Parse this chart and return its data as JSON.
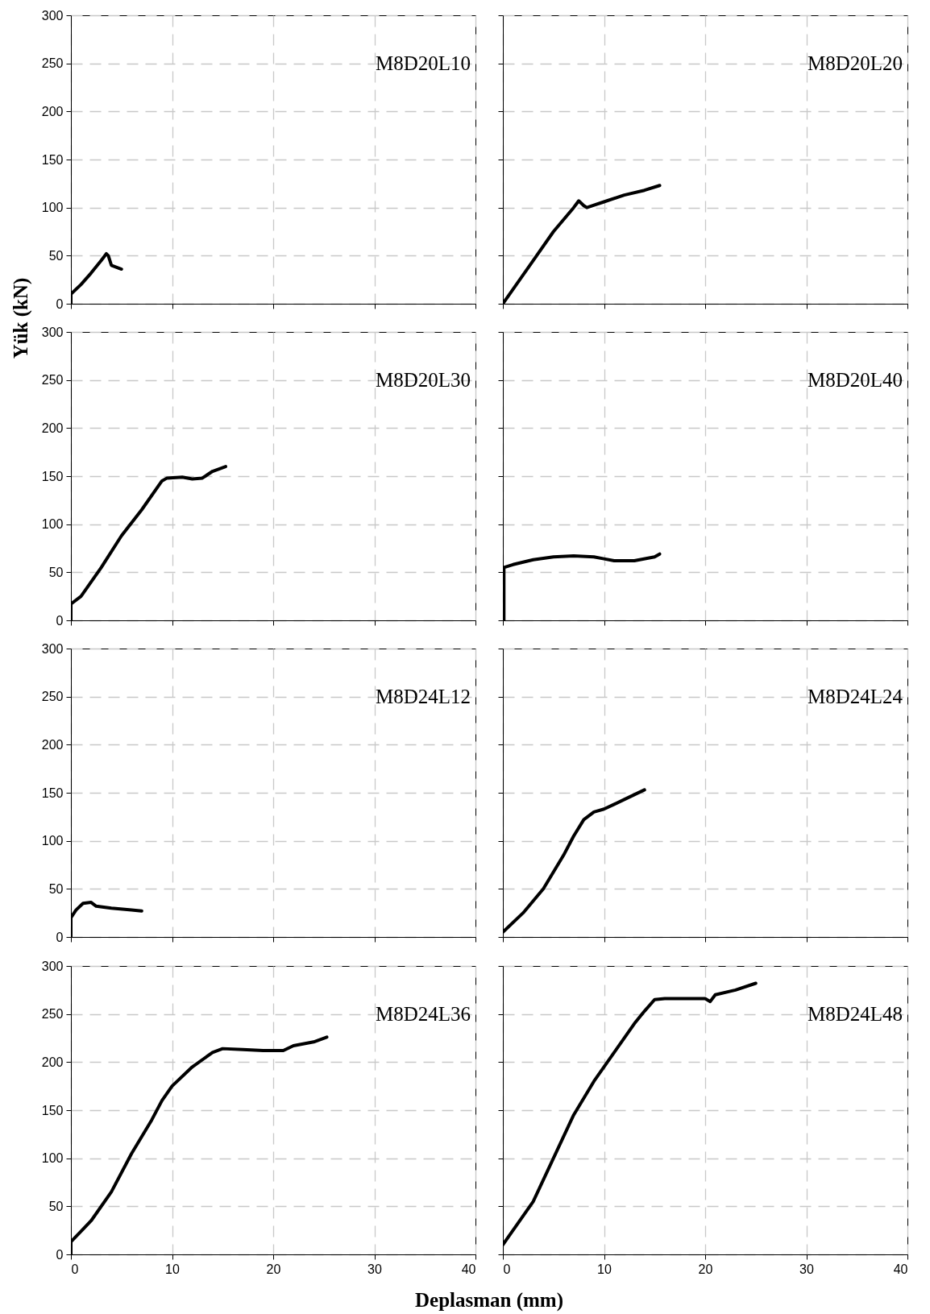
{
  "chart_data": [
    {
      "type": "line",
      "annotations": [
        "M8D20L10"
      ],
      "xlim": [
        0,
        40
      ],
      "ylim": [
        0,
        300
      ],
      "xticks": [
        0,
        10,
        20,
        30,
        40
      ],
      "yticks": [
        0,
        50,
        100,
        150,
        200,
        250,
        300
      ],
      "grid": true,
      "tick_labels": "y",
      "series": [
        {
          "color": "#000000",
          "x": [
            0,
            0,
            1,
            2,
            3,
            3.5,
            3.7,
            4,
            5
          ],
          "values": [
            0,
            10,
            20,
            32,
            45,
            52,
            50,
            40,
            36
          ]
        }
      ]
    },
    {
      "type": "line",
      "annotations": [
        "M8D20L20"
      ],
      "xlim": [
        0,
        40
      ],
      "ylim": [
        0,
        300
      ],
      "xticks": [
        0,
        10,
        20,
        30,
        40
      ],
      "yticks": [
        0,
        50,
        100,
        150,
        200,
        250,
        300
      ],
      "grid": true,
      "tick_labels": false,
      "series": [
        {
          "color": "#000000",
          "x": [
            0,
            1,
            3,
            5,
            7,
            7.5,
            8,
            8.3,
            10,
            12,
            14,
            15.5
          ],
          "values": [
            0,
            15,
            45,
            75,
            100,
            107,
            102,
            100,
            106,
            113,
            118,
            123
          ]
        }
      ]
    },
    {
      "type": "line",
      "annotations": [
        "M8D20L30"
      ],
      "ylabel": "Yük (kN)",
      "xlim": [
        0,
        40
      ],
      "ylim": [
        0,
        300
      ],
      "xticks": [
        0,
        10,
        20,
        30,
        40
      ],
      "yticks": [
        0,
        50,
        100,
        150,
        200,
        250,
        300
      ],
      "grid": true,
      "tick_labels": "y",
      "series": [
        {
          "color": "#000000",
          "x": [
            0,
            0,
            1,
            3,
            5,
            7,
            9,
            9.5,
            11,
            12,
            13,
            14,
            15.3
          ],
          "values": [
            0,
            17,
            25,
            55,
            88,
            115,
            145,
            148,
            149,
            147,
            148,
            155,
            160
          ]
        }
      ]
    },
    {
      "type": "line",
      "annotations": [
        "M8D20L40"
      ],
      "xlim": [
        0,
        40
      ],
      "ylim": [
        0,
        300
      ],
      "xticks": [
        0,
        10,
        20,
        30,
        40
      ],
      "yticks": [
        0,
        50,
        100,
        150,
        200,
        250,
        300
      ],
      "grid": true,
      "tick_labels": false,
      "series": [
        {
          "color": "#000000",
          "x": [
            0,
            0.1,
            0.1,
            1,
            3,
            5,
            7,
            9,
            10,
            11,
            13,
            15,
            15.5
          ],
          "values": [
            0,
            0,
            55,
            58,
            63,
            66,
            67,
            66,
            64,
            62,
            62,
            66,
            69
          ]
        }
      ]
    },
    {
      "type": "line",
      "annotations": [
        "M8D24L12"
      ],
      "xlim": [
        0,
        40
      ],
      "ylim": [
        0,
        300
      ],
      "xticks": [
        0,
        10,
        20,
        30,
        40
      ],
      "yticks": [
        0,
        50,
        100,
        150,
        200,
        250,
        300
      ],
      "grid": true,
      "tick_labels": "y",
      "series": [
        {
          "color": "#000000",
          "x": [
            0,
            0,
            0.5,
            1.2,
            2,
            2.5,
            4,
            6,
            7
          ],
          "values": [
            0,
            20,
            28,
            35,
            36,
            32,
            30,
            28,
            27
          ]
        }
      ]
    },
    {
      "type": "line",
      "annotations": [
        "M8D24L24"
      ],
      "xlim": [
        0,
        40
      ],
      "ylim": [
        0,
        300
      ],
      "xticks": [
        0,
        10,
        20,
        30,
        40
      ],
      "yticks": [
        0,
        50,
        100,
        150,
        200,
        250,
        300
      ],
      "grid": true,
      "tick_labels": false,
      "series": [
        {
          "color": "#000000",
          "x": [
            0,
            2,
            4,
            6,
            7,
            8,
            9,
            10,
            11,
            12,
            13,
            14
          ],
          "values": [
            5,
            25,
            50,
            85,
            105,
            122,
            130,
            133,
            138,
            143,
            148,
            153
          ]
        }
      ]
    },
    {
      "type": "line",
      "annotations": [
        "M8D24L36"
      ],
      "xlabel": "Deplasman (mm)",
      "xlim": [
        0,
        40
      ],
      "ylim": [
        0,
        300
      ],
      "xticks": [
        0,
        10,
        20,
        30,
        40
      ],
      "yticks": [
        0,
        50,
        100,
        150,
        200,
        250,
        300
      ],
      "grid": true,
      "series": [
        {
          "color": "#000000",
          "x": [
            0,
            0,
            2,
            4,
            6,
            8,
            9,
            10,
            12,
            14,
            15,
            17,
            19,
            21,
            22,
            24,
            25.3
          ],
          "values": [
            0,
            13,
            35,
            65,
            105,
            140,
            160,
            175,
            195,
            210,
            214,
            213,
            212,
            212,
            217,
            221,
            226
          ]
        }
      ]
    },
    {
      "type": "line",
      "annotations": [
        "M8D24L48"
      ],
      "xlim": [
        0,
        40
      ],
      "ylim": [
        0,
        300
      ],
      "xticks": [
        0,
        10,
        20,
        30,
        40
      ],
      "yticks": [
        0,
        50,
        100,
        150,
        200,
        250,
        300
      ],
      "grid": true,
      "tick_labels": "x",
      "series": [
        {
          "color": "#000000",
          "x": [
            0,
            1,
            3,
            5,
            7,
            9,
            11,
            13,
            14,
            15,
            16,
            18,
            20,
            20.5,
            21,
            23,
            25
          ],
          "values": [
            10,
            25,
            55,
            100,
            145,
            180,
            210,
            240,
            253,
            265,
            266,
            266,
            266,
            263,
            270,
            275,
            282
          ]
        }
      ]
    }
  ]
}
